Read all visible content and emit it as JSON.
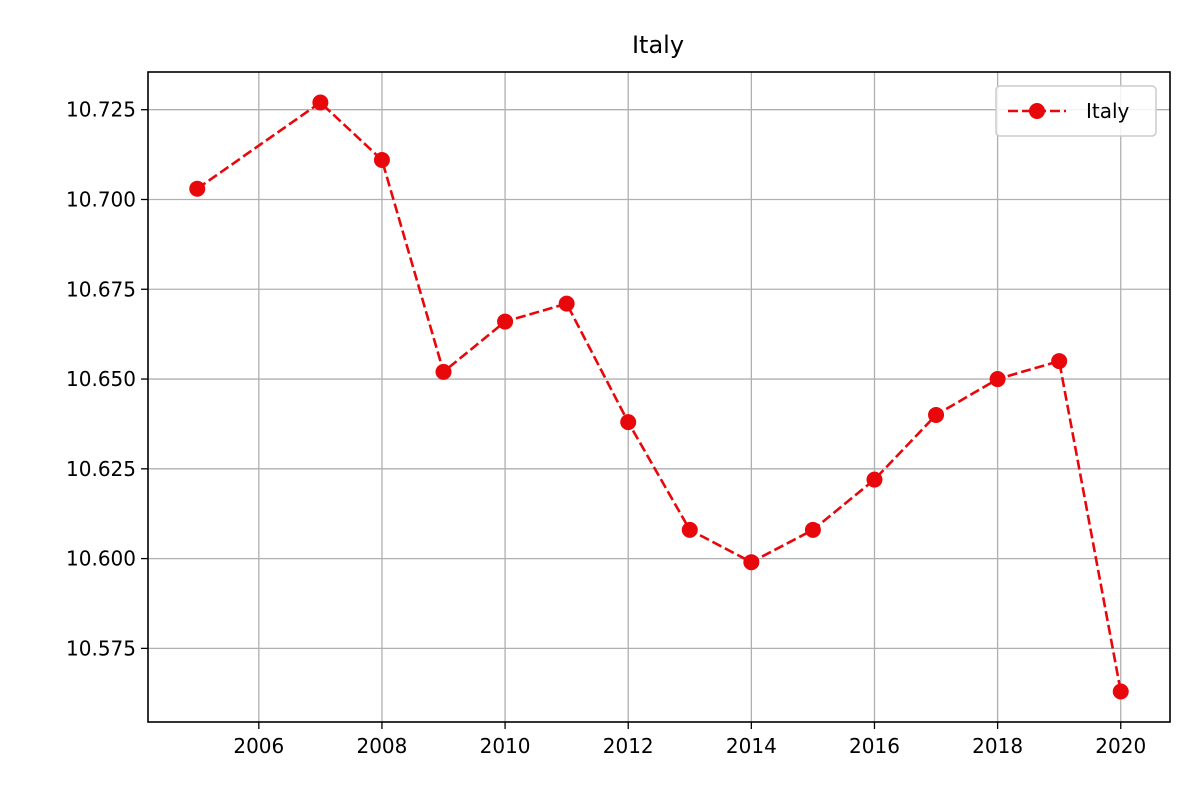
{
  "chart_data": {
    "type": "line",
    "title": "Italy",
    "xlabel": "",
    "ylabel": "",
    "x": [
      2005,
      2007,
      2008,
      2009,
      2010,
      2011,
      2012,
      2013,
      2014,
      2015,
      2016,
      2017,
      2018,
      2019,
      2020
    ],
    "series": [
      {
        "name": "Italy",
        "values": [
          10.703,
          10.727,
          10.711,
          10.652,
          10.666,
          10.671,
          10.638,
          10.608,
          10.599,
          10.608,
          10.622,
          10.64,
          10.65,
          10.655,
          10.563
        ],
        "color": "#e8070b",
        "line_style": "dashed",
        "marker": "circle"
      }
    ],
    "xlim": [
      2004.2,
      2020.8
    ],
    "ylim": [
      10.5545,
      10.7355
    ],
    "x_ticks": [
      2006,
      2008,
      2010,
      2012,
      2014,
      2016,
      2018,
      2020
    ],
    "x_tick_labels": [
      "2006",
      "2008",
      "2010",
      "2012",
      "2014",
      "2016",
      "2018",
      "2020"
    ],
    "y_ticks": [
      10.575,
      10.6,
      10.625,
      10.65,
      10.675,
      10.7,
      10.725
    ],
    "y_tick_labels": [
      "10.575",
      "10.600",
      "10.625",
      "10.650",
      "10.675",
      "10.700",
      "10.725"
    ],
    "grid": true,
    "grid_color": "#b0b0b0",
    "legend_position": "top-right"
  }
}
